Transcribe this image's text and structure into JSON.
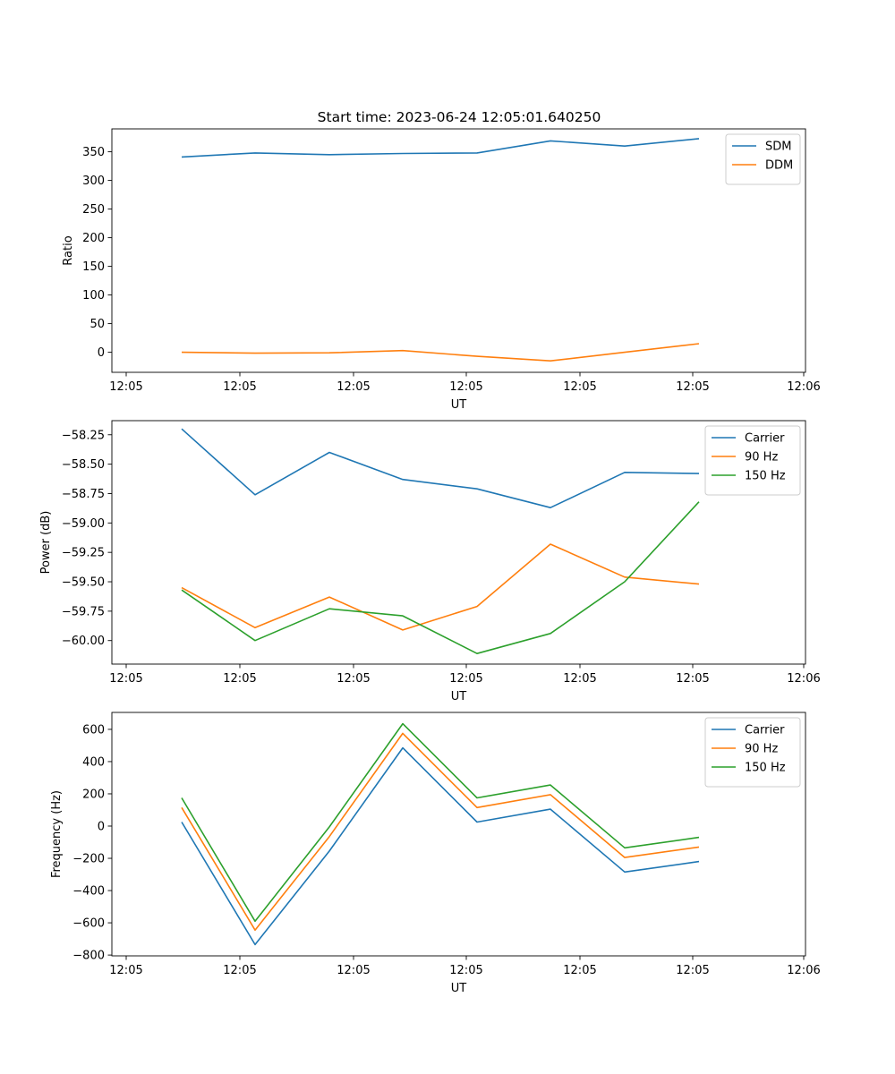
{
  "figure_title": "Start time: 2023-06-24 12:05:01.640250",
  "chart_data": [
    {
      "type": "line",
      "title": "Start time: 2023-06-24 12:05:01.640250",
      "xlabel": "UT",
      "ylabel": "Ratio",
      "x_tick_labels": [
        "12:05",
        "12:05",
        "12:05",
        "12:05",
        "12:05",
        "12:05",
        "12:06"
      ],
      "y_ticks": [
        0,
        50,
        100,
        150,
        200,
        250,
        300,
        350
      ],
      "y_tick_labels": [
        "0",
        "50",
        "100",
        "150",
        "200",
        "250",
        "300",
        "350"
      ],
      "ylim": [
        -35,
        390
      ],
      "legend": "top-right",
      "grid": false,
      "series": [
        {
          "name": "SDM",
          "color": "#1f77b4",
          "values": [
            341,
            348,
            345,
            347,
            348,
            369,
            360,
            373
          ]
        },
        {
          "name": "DDM",
          "color": "#ff7f0e",
          "values": [
            0,
            -1.5,
            -1,
            3,
            -7,
            -15,
            0,
            15
          ]
        }
      ]
    },
    {
      "type": "line",
      "title": "",
      "xlabel": "UT",
      "ylabel": "Power (dB)",
      "x_tick_labels": [
        "12:05",
        "12:05",
        "12:05",
        "12:05",
        "12:05",
        "12:05",
        "12:06"
      ],
      "y_ticks": [
        -60.0,
        -59.75,
        -59.5,
        -59.25,
        -59.0,
        -58.75,
        -58.5,
        -58.25
      ],
      "y_tick_labels": [
        "−60.00",
        "−59.75",
        "−59.50",
        "−59.25",
        "−59.00",
        "−58.75",
        "−58.50",
        "−58.25"
      ],
      "ylim": [
        -60.2,
        -58.13
      ],
      "legend": "top-right",
      "grid": false,
      "series": [
        {
          "name": "Carrier",
          "color": "#1f77b4",
          "values": [
            -58.2,
            -58.76,
            -58.4,
            -58.63,
            -58.71,
            -58.87,
            -58.57,
            -58.58
          ]
        },
        {
          "name": "90 Hz",
          "color": "#ff7f0e",
          "values": [
            -59.55,
            -59.89,
            -59.63,
            -59.91,
            -59.71,
            -59.18,
            -59.46,
            -59.52
          ]
        },
        {
          "name": "150 Hz",
          "color": "#2ca02c",
          "values": [
            -59.57,
            -60.0,
            -59.73,
            -59.79,
            -60.11,
            -59.94,
            -59.5,
            -58.82
          ]
        }
      ]
    },
    {
      "type": "line",
      "title": "",
      "xlabel": "UT",
      "ylabel": "Frequency (Hz)",
      "x_tick_labels": [
        "12:05",
        "12:05",
        "12:05",
        "12:05",
        "12:05",
        "12:05",
        "12:06"
      ],
      "y_ticks": [
        -800,
        -600,
        -400,
        -200,
        0,
        200,
        400,
        600
      ],
      "y_tick_labels": [
        "−800",
        "−600",
        "−400",
        "−200",
        "0",
        "200",
        "400",
        "600"
      ],
      "ylim": [
        -805,
        705
      ],
      "legend": "top-right",
      "grid": false,
      "series": [
        {
          "name": "Carrier",
          "color": "#1f77b4",
          "values": [
            25,
            -735,
            -155,
            485,
            25,
            105,
            -285,
            -220
          ]
        },
        {
          "name": "90 Hz",
          "color": "#ff7f0e",
          "values": [
            115,
            -645,
            -65,
            575,
            115,
            195,
            -195,
            -130
          ]
        },
        {
          "name": "150 Hz",
          "color": "#2ca02c",
          "values": [
            175,
            -590,
            -5,
            635,
            175,
            255,
            -135,
            -70
          ]
        }
      ]
    }
  ]
}
